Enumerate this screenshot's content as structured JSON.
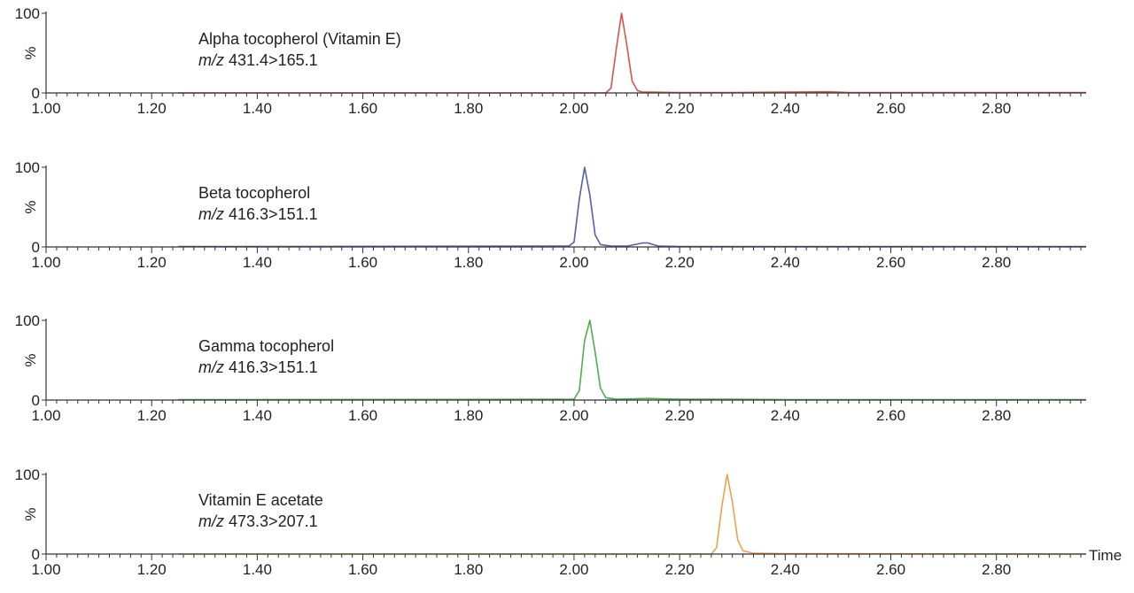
{
  "chart_data": [
    {
      "type": "line",
      "compound": "Alpha tocopherol (Vitamin E)",
      "mz_prefix": "m/z",
      "transition": "431.4>165.1",
      "ylabel": "%",
      "yticks": [
        "0",
        "100"
      ],
      "ylim": [
        0,
        100
      ],
      "xlim": [
        1.0,
        2.97
      ],
      "xticks": [
        "1.00",
        "1.20",
        "1.40",
        "1.60",
        "1.80",
        "2.00",
        "2.20",
        "2.40",
        "2.60",
        "2.80"
      ],
      "color": "#d9534f",
      "series": [
        {
          "x": [
            1.25,
            2.06,
            2.07,
            2.08,
            2.09,
            2.1,
            2.11,
            2.12,
            2.13,
            2.15,
            2.2,
            2.3,
            2.4,
            2.48,
            2.5,
            2.52,
            2.6,
            2.97
          ],
          "y": [
            0,
            0,
            6,
            55,
            100,
            60,
            15,
            3,
            1,
            1,
            0.5,
            0.5,
            1,
            1.5,
            1,
            0.5,
            0.5,
            0.5
          ]
        }
      ]
    },
    {
      "type": "line",
      "compound": "Beta tocopherol",
      "mz_prefix": "m/z",
      "transition": "416.3>151.1",
      "ylabel": "%",
      "yticks": [
        "0",
        "100"
      ],
      "ylim": [
        0,
        100
      ],
      "xlim": [
        1.0,
        2.97
      ],
      "xticks": [
        "1.00",
        "1.20",
        "1.40",
        "1.60",
        "1.80",
        "2.00",
        "2.20",
        "2.40",
        "2.60",
        "2.80"
      ],
      "color": "#5b5bb0",
      "series": [
        {
          "x": [
            1.25,
            1.99,
            2.0,
            2.01,
            2.02,
            2.03,
            2.04,
            2.05,
            2.07,
            2.1,
            2.13,
            2.14,
            2.16,
            2.2,
            2.4,
            2.6,
            2.97
          ],
          "y": [
            0.5,
            1,
            6,
            60,
            100,
            65,
            15,
            3,
            1,
            1,
            5,
            5,
            1,
            0.5,
            0.5,
            0.5,
            0.5
          ]
        }
      ]
    },
    {
      "type": "line",
      "compound": "Gamma tocopherol",
      "mz_prefix": "m/z",
      "transition": "416.3>151.1",
      "ylabel": "%",
      "yticks": [
        "0",
        "100"
      ],
      "ylim": [
        0,
        100
      ],
      "xlim": [
        1.0,
        2.97
      ],
      "xticks": [
        "1.00",
        "1.20",
        "1.40",
        "1.60",
        "1.80",
        "2.00",
        "2.20",
        "2.40",
        "2.60",
        "2.80"
      ],
      "color": "#4caf50",
      "series": [
        {
          "x": [
            1.25,
            2.0,
            2.01,
            2.02,
            2.03,
            2.04,
            2.05,
            2.06,
            2.08,
            2.14,
            2.2,
            2.3,
            2.4,
            2.97
          ],
          "y": [
            0.5,
            1,
            12,
            75,
            100,
            60,
            15,
            3,
            1,
            2,
            1,
            1,
            0.5,
            0.5
          ]
        }
      ]
    },
    {
      "type": "line",
      "compound": "Vitamin E acetate",
      "mz_prefix": "m/z",
      "transition": "473.3>207.1",
      "ylabel": "%",
      "yticks": [
        "0",
        "100"
      ],
      "ylim": [
        0,
        100
      ],
      "xlim": [
        1.0,
        2.97
      ],
      "xticks": [
        "1.00",
        "1.20",
        "1.40",
        "1.60",
        "1.80",
        "2.00",
        "2.20",
        "2.40",
        "2.60",
        "2.80"
      ],
      "xlabel": "Time",
      "color": "#f0a04b",
      "series": [
        {
          "x": [
            1.25,
            2.26,
            2.27,
            2.28,
            2.29,
            2.3,
            2.31,
            2.32,
            2.34,
            2.4,
            2.97
          ],
          "y": [
            0,
            0,
            8,
            60,
            100,
            65,
            18,
            4,
            1,
            0.5,
            0
          ]
        }
      ]
    }
  ]
}
